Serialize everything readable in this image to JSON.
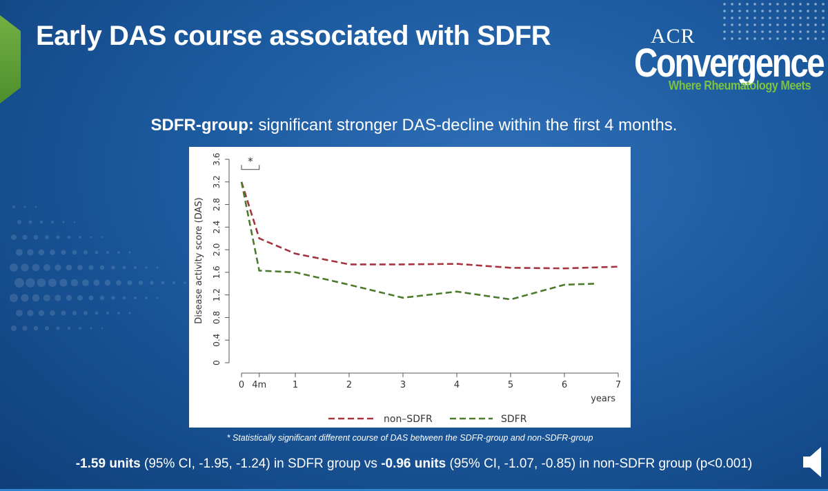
{
  "slide": {
    "title": "Early DAS course associated with SDFR",
    "subtitle_bold": "SDFR-group:",
    "subtitle_rest": " significant stronger DAS-decline within the first 4 months.",
    "footnote": "* Statistically significant different course of DAS between the SDFR-group and non-SDFR-group",
    "result": {
      "sdfr_value": "-1.59 units",
      "sdfr_ci": " (95% CI, -1.95, -1.24) in SDFR group vs ",
      "non_value": "-0.96 units",
      "non_ci": " (95% CI, -1.07, -0.85) in non-SDFR group (p<0.001)"
    }
  },
  "logo": {
    "acr": "ACR",
    "name": "Convergence",
    "tagline": "Where Rheumatology Meets"
  },
  "colors": {
    "non_sdfr": "#a3343f",
    "sdfr": "#4c7a2c",
    "accent_green": "#7cc242"
  },
  "chart_data": {
    "type": "line",
    "title": "",
    "xlabel": "years",
    "ylabel": "Disease activity score (DAS)",
    "xlim": [
      0,
      7
    ],
    "ylim": [
      0,
      3.6
    ],
    "xticks": [
      {
        "v": 0,
        "label": "0"
      },
      {
        "v": 0.33,
        "label": "4m"
      },
      {
        "v": 1,
        "label": "1"
      },
      {
        "v": 2,
        "label": "2"
      },
      {
        "v": 3,
        "label": "3"
      },
      {
        "v": 4,
        "label": "4"
      },
      {
        "v": 5,
        "label": "5"
      },
      {
        "v": 6,
        "label": "6"
      },
      {
        "v": 7,
        "label": "7"
      }
    ],
    "yticks": [
      "0",
      "0.4",
      "0.8",
      "1.2",
      "1.6",
      "2.0",
      "2.4",
      "2.8",
      "3.2",
      "3.6"
    ],
    "significance_marker": "*",
    "legend_position": "bottom",
    "series": [
      {
        "name": "non–SDFR",
        "x": [
          0,
          0.33,
          1,
          2,
          3,
          4,
          5,
          6,
          7
        ],
        "y": [
          3.2,
          2.2,
          1.93,
          1.74,
          1.74,
          1.75,
          1.68,
          1.67,
          1.7
        ]
      },
      {
        "name": "SDFR",
        "x": [
          0,
          0.33,
          1,
          2,
          3,
          4,
          5,
          6,
          6.6
        ],
        "y": [
          3.2,
          1.63,
          1.6,
          1.38,
          1.15,
          1.26,
          1.12,
          1.38,
          1.4
        ]
      }
    ]
  }
}
